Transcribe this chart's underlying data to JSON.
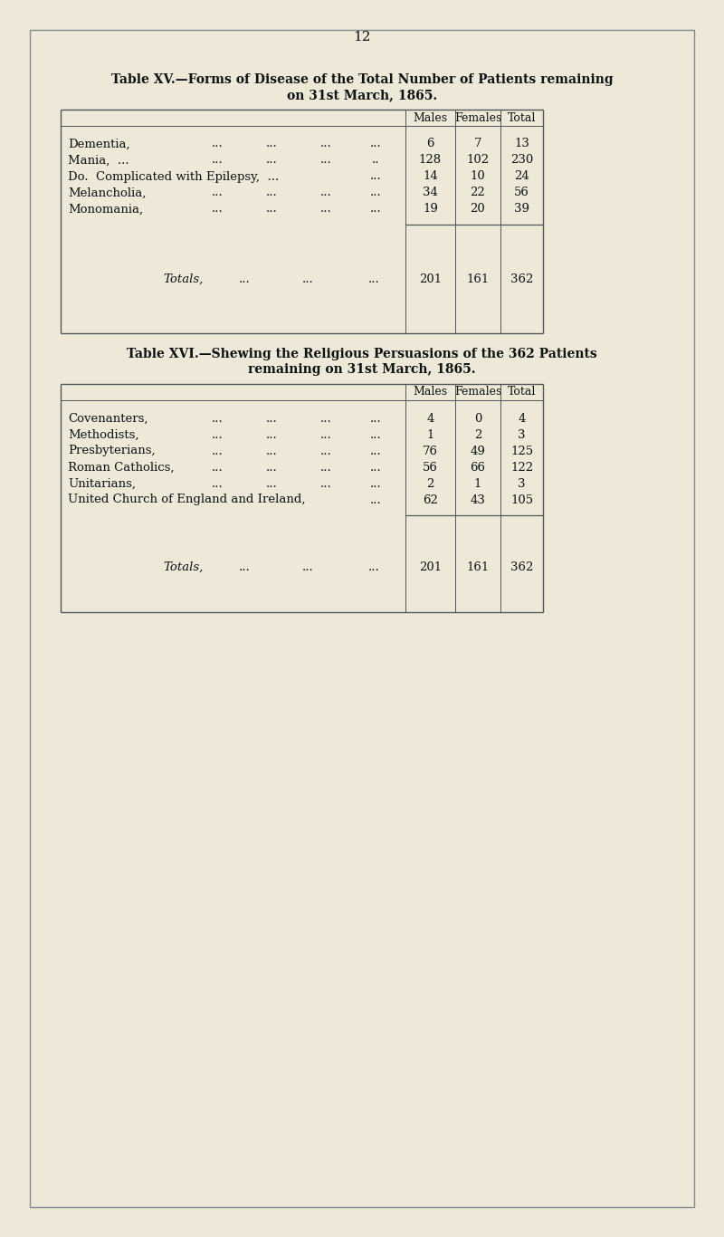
{
  "page_number": "12",
  "bg_color": "#ede8d8",
  "border_color": "#444444",
  "text_color": "#111111",
  "table1_title_line1": "Table XV.—Forms of Disease of the Total Number of Patients remaining",
  "table1_title_line2": "on 31st March, 1865.",
  "table1_row_labels": [
    "Dementia,",
    "Mania,  ...",
    "Do.  Complicated with Epilepsy,  ...",
    "Melancholia,",
    "Monomania,"
  ],
  "table1_row_dots": [
    [
      "...",
      "...",
      "...",
      "..."
    ],
    [
      "...",
      "...",
      "...",
      ".."
    ],
    [
      "..."
    ],
    [
      "...",
      "...",
      "...",
      "..."
    ],
    [
      "...",
      "...",
      "...",
      "..."
    ]
  ],
  "table1_data": [
    [
      6,
      7,
      13
    ],
    [
      128,
      102,
      230
    ],
    [
      14,
      10,
      24
    ],
    [
      34,
      22,
      56
    ],
    [
      19,
      20,
      39
    ]
  ],
  "table1_totals": [
    201,
    161,
    362
  ],
  "table2_title_line1": "Table XVI.—Shewing the Religious Persuasions of the 362 Patients",
  "table2_title_line2": "remaining on 31st March, 1865.",
  "table2_row_labels": [
    "Covenanters,",
    "Methodists,",
    "Presbyterians,",
    "Roman Catholics,",
    "Unitarians,",
    "United Church of England and Ireland,"
  ],
  "table2_row_dots": [
    [
      "...",
      "...",
      "...",
      "..."
    ],
    [
      "...",
      "...",
      "...",
      "..."
    ],
    [
      "...",
      "...",
      "...",
      "..."
    ],
    [
      "...",
      "...",
      "...",
      "..."
    ],
    [
      "...",
      "...",
      "...",
      "..."
    ],
    [
      "..."
    ]
  ],
  "table2_data": [
    [
      4,
      0,
      4
    ],
    [
      1,
      2,
      3
    ],
    [
      76,
      49,
      125
    ],
    [
      56,
      66,
      122
    ],
    [
      2,
      1,
      3
    ],
    [
      62,
      43,
      105
    ]
  ],
  "table2_totals": [
    201,
    161,
    362
  ]
}
